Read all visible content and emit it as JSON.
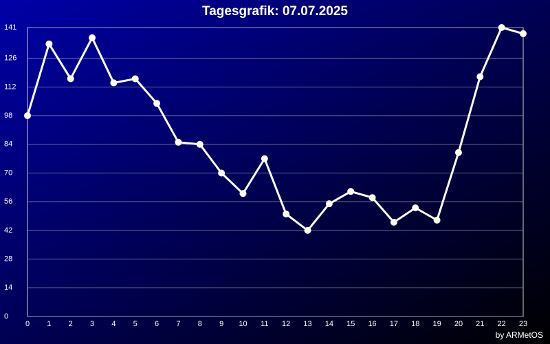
{
  "chart_data": {
    "type": "line",
    "title": "Tagesgrafik: 07.07.2025",
    "credit": "by ARMetOS",
    "x": [
      0,
      1,
      2,
      3,
      4,
      5,
      6,
      7,
      8,
      9,
      10,
      11,
      12,
      13,
      14,
      15,
      16,
      17,
      18,
      19,
      20,
      21,
      22,
      23
    ],
    "series": [
      {
        "color": "#fffff0",
        "values": [
          98,
          133,
          116,
          136,
          114,
          116,
          104,
          85,
          84,
          70,
          60,
          77,
          50,
          42,
          55,
          61,
          58,
          46,
          53,
          47,
          80,
          117,
          141,
          138
        ]
      }
    ],
    "xlim": [
      0,
      23
    ],
    "ylim": [
      0,
      141
    ],
    "yticks": [
      0,
      14,
      28,
      42,
      56,
      70,
      84,
      98,
      112,
      126,
      141
    ],
    "grid": true
  }
}
